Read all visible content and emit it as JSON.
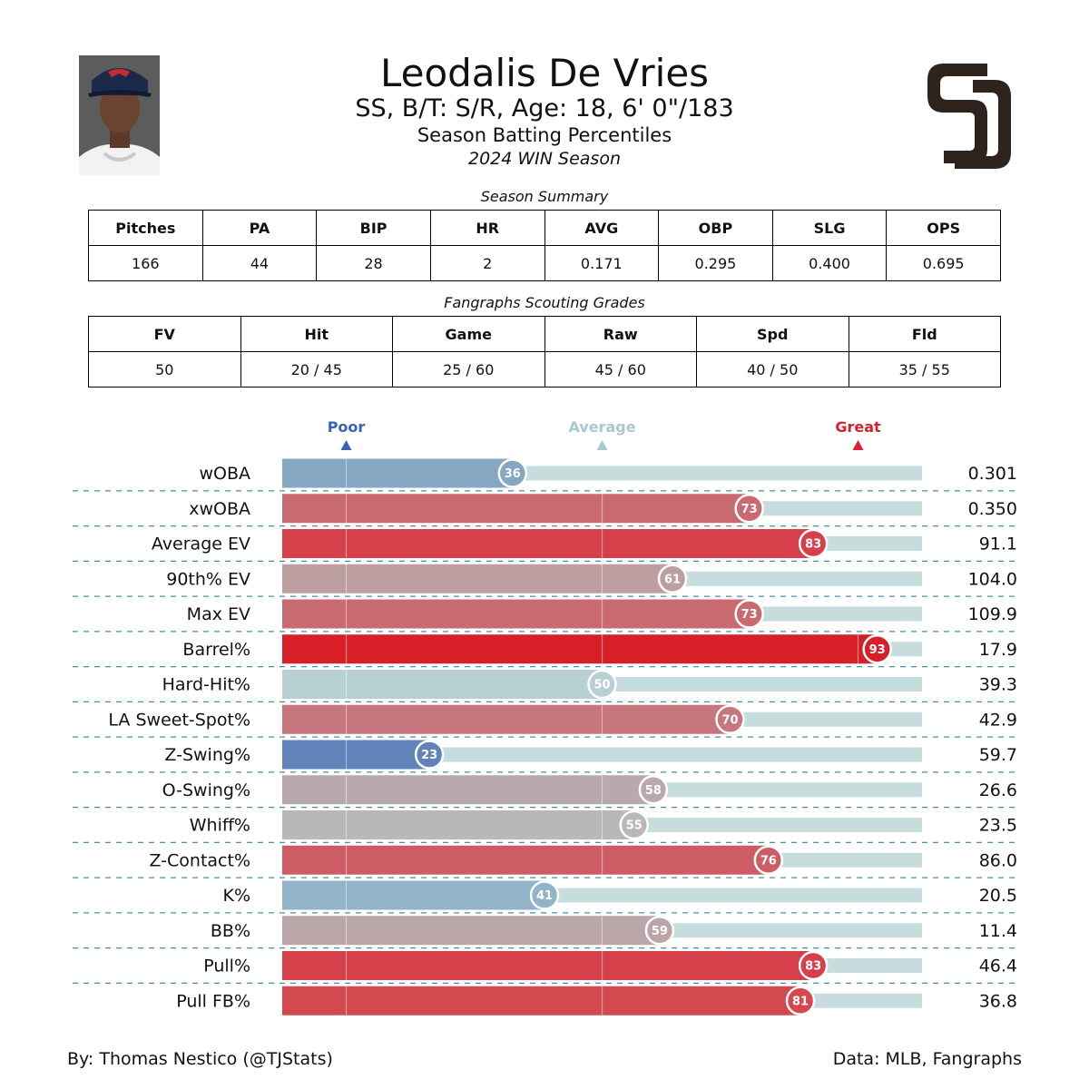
{
  "header": {
    "name": "Leodalis De Vries",
    "bio": "SS, B/T: S/R, Age: 18, 6' 0\"/183",
    "subtitle": "Season Batting Percentiles",
    "season": "2024 WIN Season"
  },
  "summary": {
    "title": "Season Summary",
    "headers": [
      "Pitches",
      "PA",
      "BIP",
      "HR",
      "AVG",
      "OBP",
      "SLG",
      "OPS"
    ],
    "values": [
      "166",
      "44",
      "28",
      "2",
      "0.171",
      "0.295",
      "0.400",
      "0.695"
    ]
  },
  "grades": {
    "title": "Fangraphs Scouting Grades",
    "headers": [
      "FV",
      "Hit",
      "Game",
      "Raw",
      "Spd",
      "Fld"
    ],
    "values": [
      "50",
      "20 / 45",
      "25 / 60",
      "45 / 60",
      "40 / 50",
      "35 / 55"
    ]
  },
  "chart_data": {
    "type": "bar",
    "orientation": "horizontal",
    "xlim": [
      0,
      100
    ],
    "markers": [
      {
        "label": "Poor",
        "value": 10,
        "color": "#3a62b5"
      },
      {
        "label": "Average",
        "value": 50,
        "color": "#a9c7cf"
      },
      {
        "label": "Great",
        "value": 90,
        "color": "#d62130"
      }
    ],
    "categories": [
      "wOBA",
      "xwOBA",
      "Average EV",
      "90th% EV",
      "Max EV",
      "Barrel%",
      "Hard-Hit%",
      "LA Sweet-Spot%",
      "Z-Swing%",
      "O-Swing%",
      "Whiff%",
      "Z-Contact%",
      "K%",
      "BB%",
      "Pull%",
      "Pull FB%"
    ],
    "percentiles": [
      36,
      73,
      83,
      61,
      73,
      93,
      50,
      70,
      23,
      58,
      55,
      76,
      41,
      59,
      83,
      81
    ],
    "stat_values": [
      "0.301",
      "0.350",
      "91.1",
      "104.0",
      "109.9",
      "17.9",
      "39.3",
      "42.9",
      "59.7",
      "26.6",
      "23.5",
      "86.0",
      "20.5",
      "11.4",
      "46.4",
      "36.8"
    ],
    "colors": [
      "#86a7c1",
      "#c96a71",
      "#d5404b",
      "#bd9fa2",
      "#c96a71",
      "#d71f28",
      "#b8d0d3",
      "#c6767c",
      "#6083b9",
      "#baa9ac",
      "#b8b8bb",
      "#cd5c65",
      "#93b3c8",
      "#baa6a8",
      "#d5404b",
      "#d4484f"
    ],
    "track_color": "#c6dcdd"
  },
  "footer": {
    "credit": "By: Thomas Nestico (@TJStats)",
    "source": "Data: MLB, Fangraphs"
  }
}
